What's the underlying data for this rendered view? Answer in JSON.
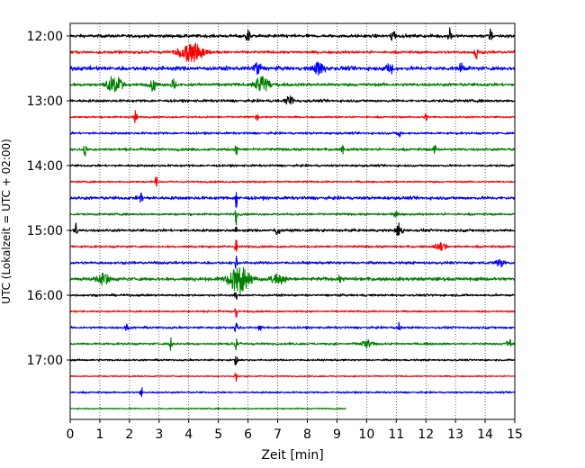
{
  "chart_data": {
    "type": "line",
    "title": "",
    "xlabel": "Zeit  [min]",
    "ylabel": "UTC (Lokalzeit = UTC + 02:00)",
    "xlim": [
      0,
      15
    ],
    "x_ticks": [
      "0",
      "1",
      "2",
      "3",
      "4",
      "5",
      "6",
      "7",
      "8",
      "9",
      "10",
      "11",
      "12",
      "13",
      "14",
      "15"
    ],
    "y_ticks": [
      "12:00",
      "13:00",
      "14:00",
      "15:00",
      "16:00",
      "17:00"
    ],
    "grid": "vertical dotted",
    "colors": [
      "#000000",
      "#ff0000",
      "#0000ff",
      "#008000"
    ],
    "rows_per_hour": 4,
    "minutes_per_row": 15,
    "traces": [
      {
        "start": "12:00",
        "color": "#000000",
        "end_min": 15,
        "noise": 0.7,
        "events": [
          [
            6.0,
            1.4,
            0.08
          ],
          [
            10.9,
            1.4,
            0.1
          ],
          [
            12.8,
            2.2,
            0.06
          ],
          [
            14.2,
            2.0,
            0.06
          ]
        ]
      },
      {
        "start": "12:15",
        "color": "#ff0000",
        "end_min": 15,
        "noise": 0.6,
        "events": [
          [
            4.1,
            2.4,
            0.45
          ],
          [
            13.7,
            1.8,
            0.06
          ]
        ]
      },
      {
        "start": "12:30",
        "color": "#0000ff",
        "end_min": 15,
        "noise": 0.9,
        "events": [
          [
            6.3,
            1.6,
            0.15
          ],
          [
            8.4,
            1.5,
            0.2
          ],
          [
            10.8,
            1.5,
            0.15
          ],
          [
            13.2,
            1.3,
            0.08
          ]
        ]
      },
      {
        "start": "12:45",
        "color": "#008000",
        "end_min": 15,
        "noise": 0.7,
        "events": [
          [
            1.5,
            2.0,
            0.3
          ],
          [
            2.8,
            1.6,
            0.1
          ],
          [
            3.5,
            1.2,
            0.12
          ],
          [
            6.5,
            2.2,
            0.25
          ]
        ]
      },
      {
        "start": "13:00",
        "color": "#000000",
        "end_min": 15,
        "noise": 0.6,
        "events": [
          [
            7.4,
            1.2,
            0.15
          ]
        ]
      },
      {
        "start": "13:15",
        "color": "#ff0000",
        "end_min": 15,
        "noise": 0.4,
        "events": [
          [
            2.2,
            1.6,
            0.06
          ],
          [
            6.3,
            1.2,
            0.05
          ],
          [
            12.0,
            1.5,
            0.05
          ]
        ]
      },
      {
        "start": "13:30",
        "color": "#0000ff",
        "end_min": 15,
        "noise": 0.5,
        "events": [
          [
            11.1,
            1.5,
            0.05
          ]
        ]
      },
      {
        "start": "13:45",
        "color": "#008000",
        "end_min": 15,
        "noise": 0.6,
        "events": [
          [
            0.5,
            1.6,
            0.05
          ],
          [
            5.6,
            1.8,
            0.05
          ],
          [
            9.2,
            1.2,
            0.05
          ],
          [
            12.3,
            1.2,
            0.05
          ]
        ]
      },
      {
        "start": "14:00",
        "color": "#000000",
        "end_min": 15,
        "noise": 0.5,
        "events": []
      },
      {
        "start": "14:15",
        "color": "#ff0000",
        "end_min": 15,
        "noise": 0.4,
        "events": [
          [
            2.9,
            1.4,
            0.05
          ]
        ]
      },
      {
        "start": "14:30",
        "color": "#0000ff",
        "end_min": 15,
        "noise": 0.7,
        "events": [
          [
            2.4,
            1.2,
            0.06
          ],
          [
            5.6,
            3.0,
            0.03
          ]
        ]
      },
      {
        "start": "14:45",
        "color": "#008000",
        "end_min": 15,
        "noise": 0.5,
        "events": [
          [
            5.6,
            3.0,
            0.03
          ],
          [
            11.0,
            1.4,
            0.05
          ]
        ]
      },
      {
        "start": "15:00",
        "color": "#000000",
        "end_min": 15,
        "noise": 0.6,
        "events": [
          [
            0.2,
            1.6,
            0.05
          ],
          [
            5.6,
            1.4,
            0.04
          ],
          [
            7.0,
            1.0,
            0.1
          ],
          [
            11.1,
            1.8,
            0.12
          ]
        ]
      },
      {
        "start": "15:15",
        "color": "#ff0000",
        "end_min": 15,
        "noise": 0.5,
        "events": [
          [
            5.6,
            2.0,
            0.04
          ],
          [
            12.5,
            1.0,
            0.2
          ]
        ]
      },
      {
        "start": "15:30",
        "color": "#0000ff",
        "end_min": 15,
        "noise": 0.6,
        "events": [
          [
            5.6,
            1.6,
            0.04
          ],
          [
            14.5,
            1.0,
            0.2
          ]
        ]
      },
      {
        "start": "15:45",
        "color": "#008000",
        "end_min": 15,
        "noise": 0.8,
        "events": [
          [
            1.1,
            1.4,
            0.25
          ],
          [
            5.7,
            3.6,
            0.35
          ],
          [
            7.0,
            1.2,
            0.3
          ],
          [
            9.1,
            1.0,
            0.05
          ]
        ]
      },
      {
        "start": "16:00",
        "color": "#000000",
        "end_min": 15,
        "noise": 0.5,
        "events": [
          [
            5.6,
            1.2,
            0.05
          ]
        ]
      },
      {
        "start": "16:15",
        "color": "#ff0000",
        "end_min": 15,
        "noise": 0.4,
        "events": [
          [
            5.6,
            1.6,
            0.04
          ]
        ]
      },
      {
        "start": "16:30",
        "color": "#0000ff",
        "end_min": 15,
        "noise": 0.5,
        "events": [
          [
            1.9,
            1.4,
            0.05
          ],
          [
            5.6,
            1.6,
            0.05
          ],
          [
            6.4,
            1.2,
            0.05
          ],
          [
            11.1,
            1.2,
            0.05
          ]
        ]
      },
      {
        "start": "16:45",
        "color": "#008000",
        "end_min": 15,
        "noise": 0.5,
        "events": [
          [
            3.4,
            1.6,
            0.05
          ],
          [
            5.6,
            1.6,
            0.04
          ],
          [
            10.0,
            1.0,
            0.2
          ],
          [
            14.8,
            1.4,
            0.08
          ]
        ]
      },
      {
        "start": "17:00",
        "color": "#000000",
        "end_min": 15,
        "noise": 0.4,
        "events": [
          [
            5.6,
            1.6,
            0.05
          ]
        ]
      },
      {
        "start": "17:15",
        "color": "#ff0000",
        "end_min": 15,
        "noise": 0.3,
        "events": [
          [
            5.6,
            1.4,
            0.04
          ]
        ]
      },
      {
        "start": "17:30",
        "color": "#0000ff",
        "end_min": 15,
        "noise": 0.4,
        "events": [
          [
            2.4,
            1.4,
            0.05
          ]
        ]
      },
      {
        "start": "17:45",
        "color": "#008000",
        "end_min": 9.3,
        "noise": 0.3,
        "events": []
      }
    ]
  }
}
